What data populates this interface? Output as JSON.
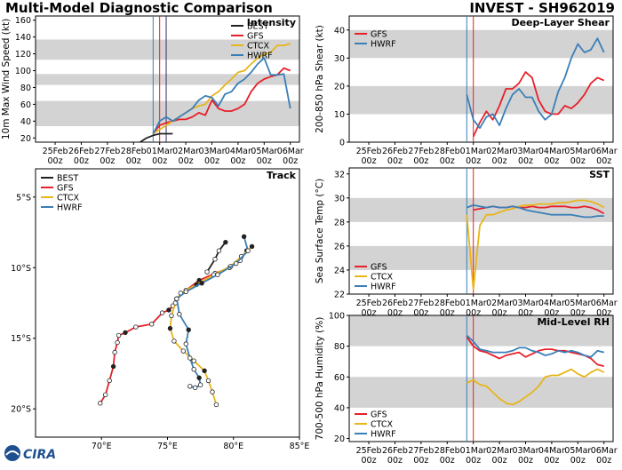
{
  "figure": {
    "title_left": "Multi-Model Diagnostic Comparison",
    "title_right": "INVEST - SH962019",
    "logo_text": "CIRA"
  },
  "colors": {
    "BEST": "#222222",
    "GFS": "#e8202a",
    "CTCX": "#e8b51a",
    "HWRF": "#3a7fb8",
    "band": "#d3d3d3",
    "marker_t0": "#3a7fb8",
    "marker_t1": "#e8202a",
    "marker_t2": "#3a2a60"
  },
  "time_axis": {
    "tick_days": [
      "25Feb",
      "26Feb",
      "27Feb",
      "28Feb",
      "01Mar",
      "02Mar",
      "03Mar",
      "04Mar",
      "05Mar",
      "06Mar"
    ],
    "tick_hours": [
      "00z",
      "00z",
      "00z",
      "00z",
      "00z",
      "00z",
      "00z",
      "00z",
      "00z",
      "00z"
    ],
    "start": "25Feb 00z",
    "end": "06Mar 00z"
  },
  "chart_data": [
    {
      "id": "intensity",
      "type": "line",
      "title": "Intensity",
      "ylabel": "10m Max Wind Speed (kt)",
      "ylim": [
        15,
        165
      ],
      "yticks": [
        20,
        40,
        60,
        80,
        100,
        120,
        140,
        160
      ],
      "bands": [
        [
          34,
          64
        ],
        [
          83,
          96
        ],
        [
          113,
          137
        ]
      ],
      "time_markers": [
        "28Feb 18z",
        "01Mar 00z",
        "01Mar 06z"
      ],
      "legend": [
        "BEST",
        "GFS",
        "CTCX",
        "HWRF"
      ],
      "series": [
        {
          "name": "BEST",
          "x": [
            "28Feb 06z",
            "28Feb 12z",
            "28Feb 18z",
            "01Mar 00z",
            "01Mar 06z",
            "01Mar 12z"
          ],
          "y": [
            15,
            20,
            23,
            25,
            25,
            25
          ]
        },
        {
          "name": "GFS",
          "x": [
            "28Feb 18z",
            "01Mar 00z",
            "01Mar 06z",
            "01Mar 12z",
            "01Mar 18z",
            "02Mar 00z",
            "02Mar 06z",
            "02Mar 12z",
            "02Mar 18z",
            "03Mar 00z",
            "03Mar 06z",
            "03Mar 12z",
            "03Mar 18z",
            "04Mar 00z",
            "04Mar 06z",
            "04Mar 12z",
            "04Mar 18z",
            "05Mar 00z",
            "05Mar 06z",
            "05Mar 12z",
            "05Mar 18z",
            "06Mar 00z"
          ],
          "y": [
            25,
            35,
            38,
            40,
            42,
            42,
            45,
            50,
            47,
            65,
            55,
            52,
            52,
            55,
            60,
            75,
            85,
            90,
            93,
            95,
            103,
            100
          ]
        },
        {
          "name": "CTCX",
          "x": [
            "28Feb 18z",
            "01Mar 00z",
            "01Mar 06z",
            "01Mar 12z",
            "01Mar 18z",
            "02Mar 00z",
            "02Mar 06z",
            "02Mar 12z",
            "02Mar 18z",
            "03Mar 00z",
            "03Mar 06z",
            "03Mar 12z",
            "03Mar 18z",
            "04Mar 00z",
            "04Mar 06z",
            "04Mar 12z",
            "04Mar 18z",
            "05Mar 00z",
            "05Mar 06z",
            "05Mar 12z",
            "05Mar 18z",
            "06Mar 00z"
          ],
          "y": [
            25,
            30,
            35,
            40,
            45,
            50,
            55,
            58,
            60,
            70,
            75,
            83,
            90,
            98,
            100,
            108,
            115,
            120,
            122,
            130,
            130,
            132
          ]
        },
        {
          "name": "HWRF",
          "x": [
            "28Feb 18z",
            "01Mar 00z",
            "01Mar 06z",
            "01Mar 12z",
            "01Mar 18z",
            "02Mar 00z",
            "02Mar 06z",
            "02Mar 12z",
            "02Mar 18z",
            "03Mar 00z",
            "03Mar 06z",
            "03Mar 12z",
            "03Mar 18z",
            "04Mar 00z",
            "04Mar 06z",
            "04Mar 12z",
            "04Mar 18z",
            "05Mar 00z",
            "05Mar 06z",
            "05Mar 12z",
            "05Mar 18z",
            "06Mar 00z"
          ],
          "y": [
            25,
            40,
            45,
            40,
            45,
            50,
            55,
            65,
            70,
            68,
            58,
            72,
            75,
            85,
            90,
            98,
            108,
            115,
            95,
            95,
            96,
            55
          ]
        }
      ]
    },
    {
      "id": "shear",
      "type": "line",
      "title": "Deep-Layer Shear",
      "ylabel": "200-850 hPa Shear (kt)",
      "ylim": [
        0,
        45
      ],
      "yticks": [
        0,
        10,
        20,
        30,
        40
      ],
      "bands": [
        [
          10,
          20
        ],
        [
          30,
          40
        ]
      ],
      "time_markers": [
        "28Feb 18z",
        "01Mar 00z"
      ],
      "legend": [
        "GFS",
        "HWRF"
      ],
      "series": [
        {
          "name": "GFS",
          "x": [
            "01Mar 00z",
            "01Mar 06z",
            "01Mar 12z",
            "01Mar 18z",
            "02Mar 00z",
            "02Mar 06z",
            "02Mar 12z",
            "02Mar 18z",
            "03Mar 00z",
            "03Mar 06z",
            "03Mar 12z",
            "03Mar 18z",
            "04Mar 00z",
            "04Mar 06z",
            "04Mar 12z",
            "04Mar 18z",
            "05Mar 00z",
            "05Mar 06z",
            "05Mar 12z",
            "05Mar 18z",
            "06Mar 00z"
          ],
          "y": [
            2,
            7,
            11,
            8,
            13,
            19,
            19,
            21,
            25,
            23,
            15,
            11,
            10,
            10,
            13,
            12,
            14,
            17,
            21,
            23,
            22
          ]
        },
        {
          "name": "HWRF",
          "x": [
            "28Feb 18z",
            "01Mar 00z",
            "01Mar 06z",
            "01Mar 12z",
            "01Mar 18z",
            "02Mar 00z",
            "02Mar 06z",
            "02Mar 12z",
            "02Mar 18z",
            "03Mar 00z",
            "03Mar 06z",
            "03Mar 12z",
            "03Mar 18z",
            "04Mar 00z",
            "04Mar 06z",
            "04Mar 12z",
            "04Mar 18z",
            "05Mar 00z",
            "05Mar 06z",
            "05Mar 12z",
            "05Mar 18z",
            "06Mar 00z"
          ],
          "y": [
            17,
            8,
            5,
            9,
            10,
            6,
            12,
            17,
            19,
            16,
            16,
            11,
            8,
            10,
            18,
            23,
            30,
            35,
            32,
            33,
            37,
            32
          ]
        }
      ]
    },
    {
      "id": "sst",
      "type": "line",
      "title": "SST",
      "ylabel": "Sea Surface Temp (°C)",
      "ylim": [
        22,
        32.5
      ],
      "yticks": [
        22,
        24,
        26,
        28,
        30,
        32
      ],
      "bands": [
        [
          24,
          26
        ],
        [
          28,
          30
        ]
      ],
      "time_markers": [
        "28Feb 18z",
        "01Mar 00z"
      ],
      "legend": [
        "GFS",
        "CTCX",
        "HWRF"
      ],
      "series": [
        {
          "name": "GFS",
          "x": [
            "01Mar 00z",
            "01Mar 06z",
            "01Mar 12z",
            "01Mar 18z",
            "02Mar 00z",
            "02Mar 06z",
            "02Mar 12z",
            "02Mar 18z",
            "03Mar 00z",
            "03Mar 06z",
            "03Mar 12z",
            "03Mar 18z",
            "04Mar 00z",
            "04Mar 06z",
            "04Mar 12z",
            "04Mar 18z",
            "05Mar 00z",
            "05Mar 06z",
            "05Mar 12z",
            "05Mar 18z",
            "06Mar 00z"
          ],
          "y": [
            29.0,
            29.1,
            29.2,
            29.3,
            29.2,
            29.2,
            29.3,
            29.2,
            29.2,
            29.3,
            29.2,
            29.2,
            29.3,
            29.3,
            29.3,
            29.2,
            29.2,
            29.3,
            29.2,
            29.0,
            28.7
          ]
        },
        {
          "name": "CTCX",
          "x": [
            "28Feb 18z",
            "01Mar 00z",
            "01Mar 06z",
            "01Mar 12z",
            "01Mar 18z",
            "02Mar 00z",
            "02Mar 06z",
            "02Mar 12z",
            "02Mar 18z",
            "03Mar 00z",
            "03Mar 06z",
            "03Mar 12z",
            "03Mar 18z",
            "04Mar 00z",
            "04Mar 06z",
            "04Mar 12z",
            "04Mar 18z",
            "05Mar 00z",
            "05Mar 06z",
            "05Mar 12z",
            "05Mar 18z",
            "06Mar 00z"
          ],
          "y": [
            28.6,
            22.4,
            27.7,
            28.6,
            28.6,
            28.8,
            29.0,
            29.1,
            29.3,
            29.4,
            29.4,
            29.5,
            29.5,
            29.5,
            29.6,
            29.6,
            29.7,
            29.8,
            29.8,
            29.7,
            29.5,
            29.2
          ]
        },
        {
          "name": "HWRF",
          "x": [
            "28Feb 18z",
            "01Mar 00z",
            "01Mar 06z",
            "01Mar 12z",
            "01Mar 18z",
            "02Mar 00z",
            "02Mar 06z",
            "02Mar 12z",
            "02Mar 18z",
            "03Mar 00z",
            "03Mar 06z",
            "03Mar 12z",
            "03Mar 18z",
            "04Mar 00z",
            "04Mar 06z",
            "04Mar 12z",
            "04Mar 18z",
            "05Mar 00z",
            "05Mar 06z",
            "05Mar 12z",
            "05Mar 18z",
            "06Mar 00z"
          ],
          "y": [
            29.2,
            29.4,
            29.3,
            29.2,
            29.3,
            29.2,
            29.2,
            29.3,
            29.2,
            29.0,
            28.9,
            28.8,
            28.7,
            28.6,
            28.6,
            28.6,
            28.6,
            28.5,
            28.4,
            28.4,
            28.5,
            28.5
          ]
        }
      ]
    },
    {
      "id": "rh",
      "type": "line",
      "title": "Mid-Level RH",
      "ylabel": "700-500 hPa Humidity (%)",
      "ylim": [
        18,
        100
      ],
      "yticks": [
        20,
        40,
        60,
        80,
        100
      ],
      "bands": [
        [
          40,
          60
        ],
        [
          80,
          100
        ]
      ],
      "time_markers": [
        "28Feb 18z",
        "01Mar 00z"
      ],
      "legend": [
        "GFS",
        "CTCX",
        "HWRF"
      ],
      "series": [
        {
          "name": "GFS",
          "x": [
            "28Feb 18z",
            "01Mar 00z",
            "01Mar 06z",
            "01Mar 12z",
            "01Mar 18z",
            "02Mar 00z",
            "02Mar 06z",
            "02Mar 12z",
            "02Mar 18z",
            "03Mar 00z",
            "03Mar 06z",
            "03Mar 12z",
            "03Mar 18z",
            "04Mar 00z",
            "04Mar 06z",
            "04Mar 12z",
            "04Mar 18z",
            "05Mar 00z",
            "05Mar 06z",
            "05Mar 12z",
            "05Mar 18z",
            "06Mar 00z"
          ],
          "y": [
            86,
            80,
            77,
            76,
            74,
            72,
            74,
            75,
            76,
            73,
            75,
            77,
            78,
            78,
            77,
            77,
            76,
            75,
            74,
            72,
            68,
            67
          ]
        },
        {
          "name": "CTCX",
          "x": [
            "28Feb 18z",
            "01Mar 00z",
            "01Mar 06z",
            "01Mar 12z",
            "01Mar 18z",
            "02Mar 00z",
            "02Mar 06z",
            "02Mar 12z",
            "02Mar 18z",
            "03Mar 00z",
            "03Mar 06z",
            "03Mar 12z",
            "03Mar 18z",
            "04Mar 00z",
            "04Mar 06z",
            "04Mar 12z",
            "04Mar 18z",
            "05Mar 00z",
            "05Mar 06z",
            "05Mar 12z",
            "05Mar 18z",
            "06Mar 00z"
          ],
          "y": [
            56,
            58,
            55,
            54,
            50,
            46,
            43,
            42,
            44,
            47,
            50,
            54,
            60,
            61,
            61,
            63,
            65,
            62,
            60,
            63,
            65,
            63
          ]
        },
        {
          "name": "HWRF",
          "x": [
            "28Feb 18z",
            "01Mar 00z",
            "01Mar 06z",
            "01Mar 12z",
            "01Mar 18z",
            "02Mar 00z",
            "02Mar 06z",
            "02Mar 12z",
            "02Mar 18z",
            "03Mar 00z",
            "03Mar 06z",
            "03Mar 12z",
            "03Mar 18z",
            "04Mar 00z",
            "04Mar 06z",
            "04Mar 12z",
            "04Mar 18z",
            "05Mar 00z",
            "05Mar 06z",
            "05Mar 12z",
            "05Mar 18z",
            "06Mar 00z"
          ],
          "y": [
            87,
            83,
            78,
            77,
            76,
            76,
            76,
            77,
            79,
            79,
            77,
            76,
            74,
            75,
            77,
            76,
            77,
            76,
            74,
            73,
            77,
            76
          ]
        }
      ]
    },
    {
      "id": "track",
      "type": "line",
      "title": "Track",
      "xlim": [
        65,
        85
      ],
      "ylim": [
        -22,
        -3
      ],
      "xticks": [
        {
          "v": 70,
          "label": "70°E"
        },
        {
          "v": 75,
          "label": "75°E"
        },
        {
          "v": 80,
          "label": "80°E"
        },
        {
          "v": 85,
          "label": "85°E"
        }
      ],
      "yticks": [
        {
          "v": -5,
          "label": "5°S"
        },
        {
          "v": -10,
          "label": "10°S"
        },
        {
          "v": -15,
          "label": "15°S"
        },
        {
          "v": -20,
          "label": "20°S"
        }
      ],
      "legend": [
        "BEST",
        "GFS",
        "CTCX",
        "HWRF"
      ],
      "series": [
        {
          "name": "BEST",
          "lon": [
            79.4,
            78.9,
            78.6,
            78.0
          ],
          "lat": [
            -8.2,
            -8.8,
            -9.4,
            -10.3
          ]
        },
        {
          "name": "GFS",
          "lon": [
            81.0,
            80.5,
            79.7,
            78.6,
            77.4,
            76.4,
            75.7,
            75.4,
            75.1,
            74.6,
            73.8,
            72.6,
            71.8,
            71.3,
            71.2,
            71.0,
            70.9,
            70.6,
            70.3,
            69.9
          ],
          "lat": [
            -8.8,
            -9.5,
            -10.0,
            -10.4,
            -10.9,
            -11.6,
            -12.2,
            -12.7,
            -13.0,
            -13.2,
            -14.0,
            -14.2,
            -14.6,
            -14.8,
            -15.3,
            -16.0,
            -17.0,
            -18.0,
            -19.0,
            -19.6
          ]
        },
        {
          "name": "CTCX",
          "lon": [
            81.4,
            80.6,
            79.8,
            78.5,
            77.2,
            76.0,
            75.6,
            75.3,
            75.2,
            75.5,
            76.2,
            77.0,
            77.8,
            78.1,
            78.4,
            78.7
          ],
          "lat": [
            -8.5,
            -9.2,
            -9.9,
            -10.5,
            -11.2,
            -11.8,
            -12.5,
            -13.4,
            -14.3,
            -15.2,
            -15.9,
            -16.6,
            -17.3,
            -18.0,
            -18.8,
            -19.7
          ]
        },
        {
          "name": "HWRF",
          "lon": [
            80.8,
            81.1,
            80.2,
            78.8,
            77.6,
            76.4,
            75.7,
            75.9,
            76.6,
            76.4,
            76.7,
            77.0,
            77.4,
            77.5,
            77.1,
            76.7
          ],
          "lat": [
            -7.8,
            -8.8,
            -9.7,
            -10.5,
            -11.1,
            -11.7,
            -12.2,
            -13.3,
            -14.4,
            -15.4,
            -16.4,
            -17.2,
            -17.8,
            -18.3,
            -18.5,
            -18.4
          ]
        }
      ]
    }
  ]
}
